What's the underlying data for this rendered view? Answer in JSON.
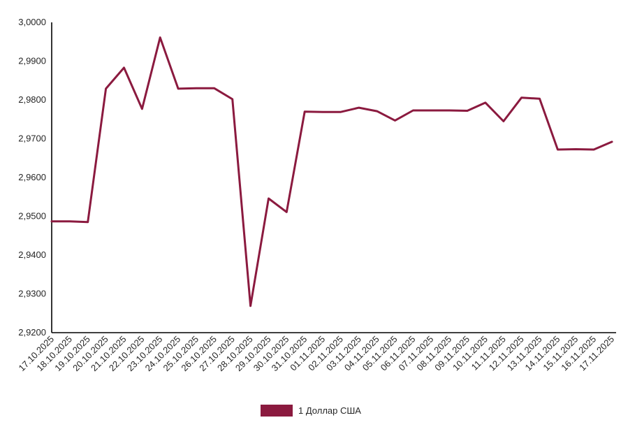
{
  "chart_data": {
    "type": "line",
    "title": "",
    "xlabel": "",
    "ylabel": "",
    "ylim": [
      2.92,
      3.0
    ],
    "y_ticks": [
      "3,0000",
      "2,9900",
      "2,9800",
      "2,9700",
      "2,9600",
      "2,9500",
      "2,9400",
      "2,9300",
      "2,9200"
    ],
    "y_tick_values": [
      3.0,
      2.99,
      2.98,
      2.97,
      2.96,
      2.95,
      2.94,
      2.93,
      2.92
    ],
    "grid": false,
    "legend_position": "bottom-center",
    "categories": [
      "17.10.2025",
      "18.10.2025",
      "19.10.2025",
      "20.10.2025",
      "21.10.2025",
      "22.10.2025",
      "23.10.2025",
      "24.10.2025",
      "25.10.2025",
      "26.10.2025",
      "27.10.2025",
      "28.10.2025",
      "29.10.2025",
      "30.10.2025",
      "31.10.2025",
      "01.11.2025",
      "02.11.2025",
      "03.11.2025",
      "04.11.2025",
      "05.11.2025",
      "06.11.2025",
      "07.11.2025",
      "08.11.2025",
      "09.11.2025",
      "10.11.2025",
      "11.11.2025",
      "12.11.2025",
      "13.11.2025",
      "14.11.2025",
      "15.11.2025",
      "16.11.2025",
      "17.11.2025"
    ],
    "series": [
      {
        "name": "1 Доллар США",
        "color": "#8b1a3f",
        "values": [
          2.9487,
          2.9487,
          2.9485,
          2.9829,
          2.9883,
          2.9777,
          2.9961,
          2.9829,
          2.983,
          2.983,
          2.9802,
          2.9269,
          2.9546,
          2.9511,
          2.977,
          2.9769,
          2.9769,
          2.978,
          2.9771,
          2.9747,
          2.9773,
          2.9773,
          2.9773,
          2.9772,
          2.9793,
          2.9745,
          2.9806,
          2.9803,
          2.9672,
          2.9673,
          2.9672,
          2.9692
        ]
      }
    ]
  }
}
